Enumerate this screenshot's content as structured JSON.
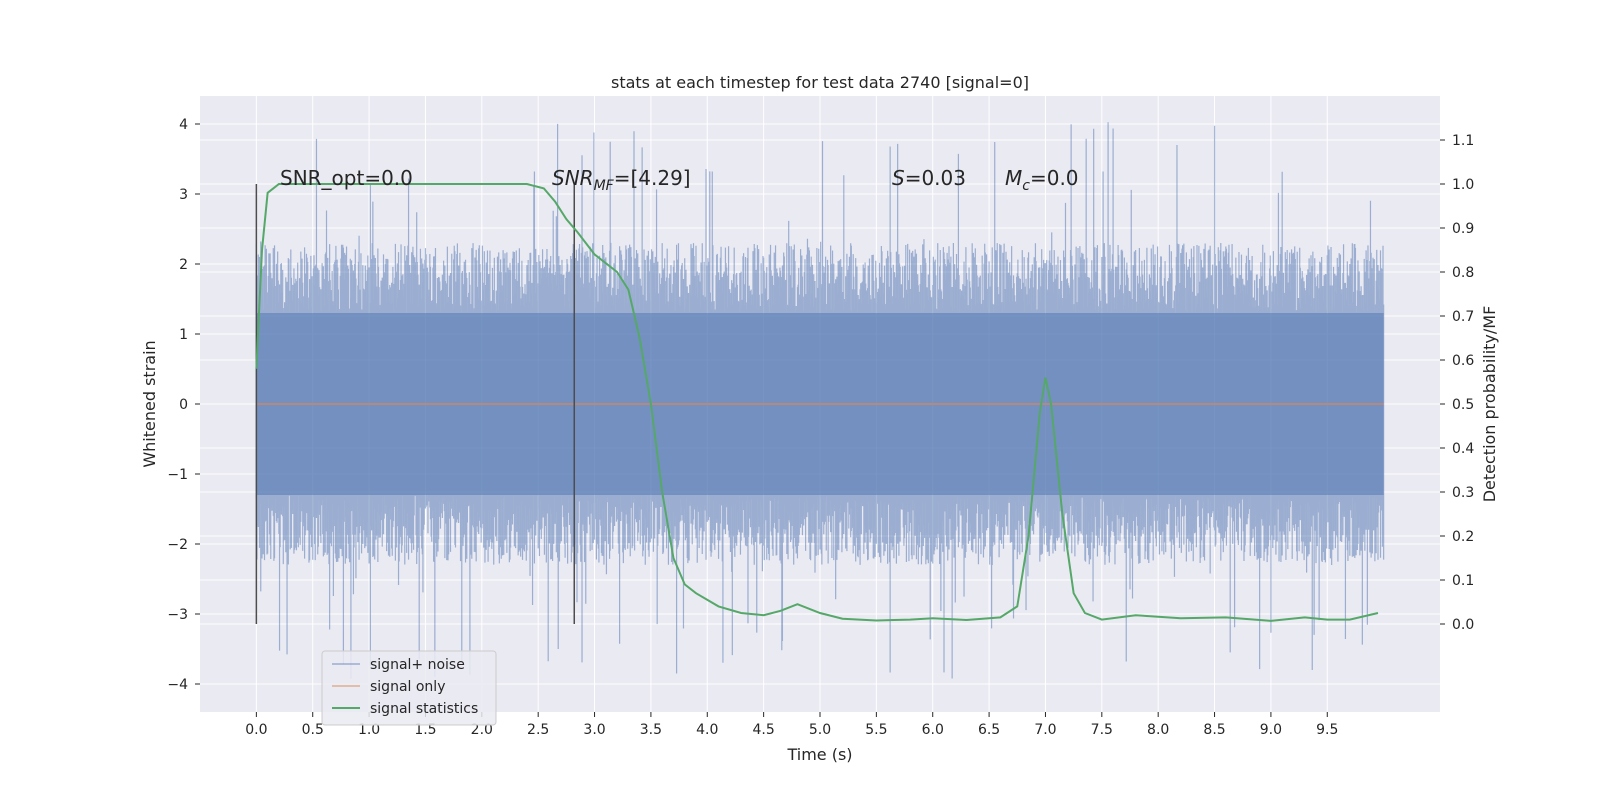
{
  "chart_data": {
    "type": "line",
    "title": "stats at each timestep for test data 2740 [signal=0]",
    "xlabel": "Time (s)",
    "ylabel": "Whitened strain",
    "ylabel_right": "Detection probability/MF",
    "xlim": [
      -0.5,
      10.5
    ],
    "ylim": [
      -4.4,
      4.4
    ],
    "ylim_right": [
      -0.2,
      1.2
    ],
    "x_ticks": [
      "0.0",
      "0.5",
      "1.0",
      "1.5",
      "2.0",
      "2.5",
      "3.0",
      "3.5",
      "4.0",
      "4.5",
      "5.0",
      "5.5",
      "6.0",
      "6.5",
      "7.0",
      "7.5",
      "8.0",
      "8.5",
      "9.0",
      "9.5"
    ],
    "y_ticks": [
      "4",
      "3",
      "2",
      "1",
      "0",
      "−1",
      "−2",
      "−3",
      "−4"
    ],
    "y_right_ticks": [
      "1.1",
      "1.0",
      "0.9",
      "0.8",
      "0.7",
      "0.6",
      "0.5",
      "0.4",
      "0.3",
      "0.2",
      "0.1",
      "0.0"
    ],
    "grid": true,
    "legend_position": "bottom-left",
    "annotations": {
      "snr_opt": "SNR_opt=0.0",
      "snr_mf_sym": "SNR",
      "snr_mf_sub": "MF",
      "snr_mf_val": "=[4.29]",
      "s_sym": "S",
      "s_val": "=0.03",
      "mc_sym": "M",
      "mc_sub": "c",
      "mc_val": "=0.0"
    },
    "vlines": [
      0.0,
      2.82
    ],
    "series": [
      {
        "name": "signal+ noise",
        "color": "#4c72b0",
        "x_range": [
          0.0,
          10.0
        ],
        "envelope": {
          "core_amplitude": 1.3,
          "typical_peak": 2.3,
          "max_peak": 4.05,
          "min_trough": -4.0
        }
      },
      {
        "name": "signal only",
        "color": "#dd8452",
        "x": [
          0.0,
          10.0
        ],
        "y": [
          0.0,
          0.0
        ]
      },
      {
        "name": "signal statistics",
        "color": "#55a868",
        "axis": "right",
        "x": [
          0.0,
          0.05,
          0.1,
          0.15,
          0.2,
          0.3,
          0.5,
          1.0,
          1.5,
          2.0,
          2.4,
          2.55,
          2.65,
          2.75,
          2.85,
          3.0,
          3.1,
          3.2,
          3.3,
          3.4,
          3.5,
          3.6,
          3.7,
          3.8,
          3.9,
          4.1,
          4.3,
          4.5,
          4.65,
          4.8,
          5.0,
          5.2,
          5.5,
          5.8,
          6.0,
          6.3,
          6.6,
          6.75,
          6.85,
          6.95,
          7.0,
          7.05,
          7.15,
          7.25,
          7.35,
          7.5,
          7.8,
          8.2,
          8.6,
          9.0,
          9.3,
          9.5,
          9.7,
          9.95
        ],
        "y": [
          0.58,
          0.85,
          0.98,
          0.99,
          1.0,
          1.0,
          1.0,
          1.0,
          1.0,
          1.0,
          1.0,
          0.99,
          0.96,
          0.92,
          0.89,
          0.84,
          0.82,
          0.8,
          0.76,
          0.65,
          0.5,
          0.3,
          0.15,
          0.09,
          0.07,
          0.04,
          0.025,
          0.02,
          0.03,
          0.045,
          0.025,
          0.012,
          0.008,
          0.01,
          0.013,
          0.009,
          0.015,
          0.04,
          0.2,
          0.48,
          0.56,
          0.5,
          0.25,
          0.07,
          0.025,
          0.01,
          0.02,
          0.013,
          0.015,
          0.007,
          0.015,
          0.01,
          0.01,
          0.025
        ]
      }
    ]
  }
}
